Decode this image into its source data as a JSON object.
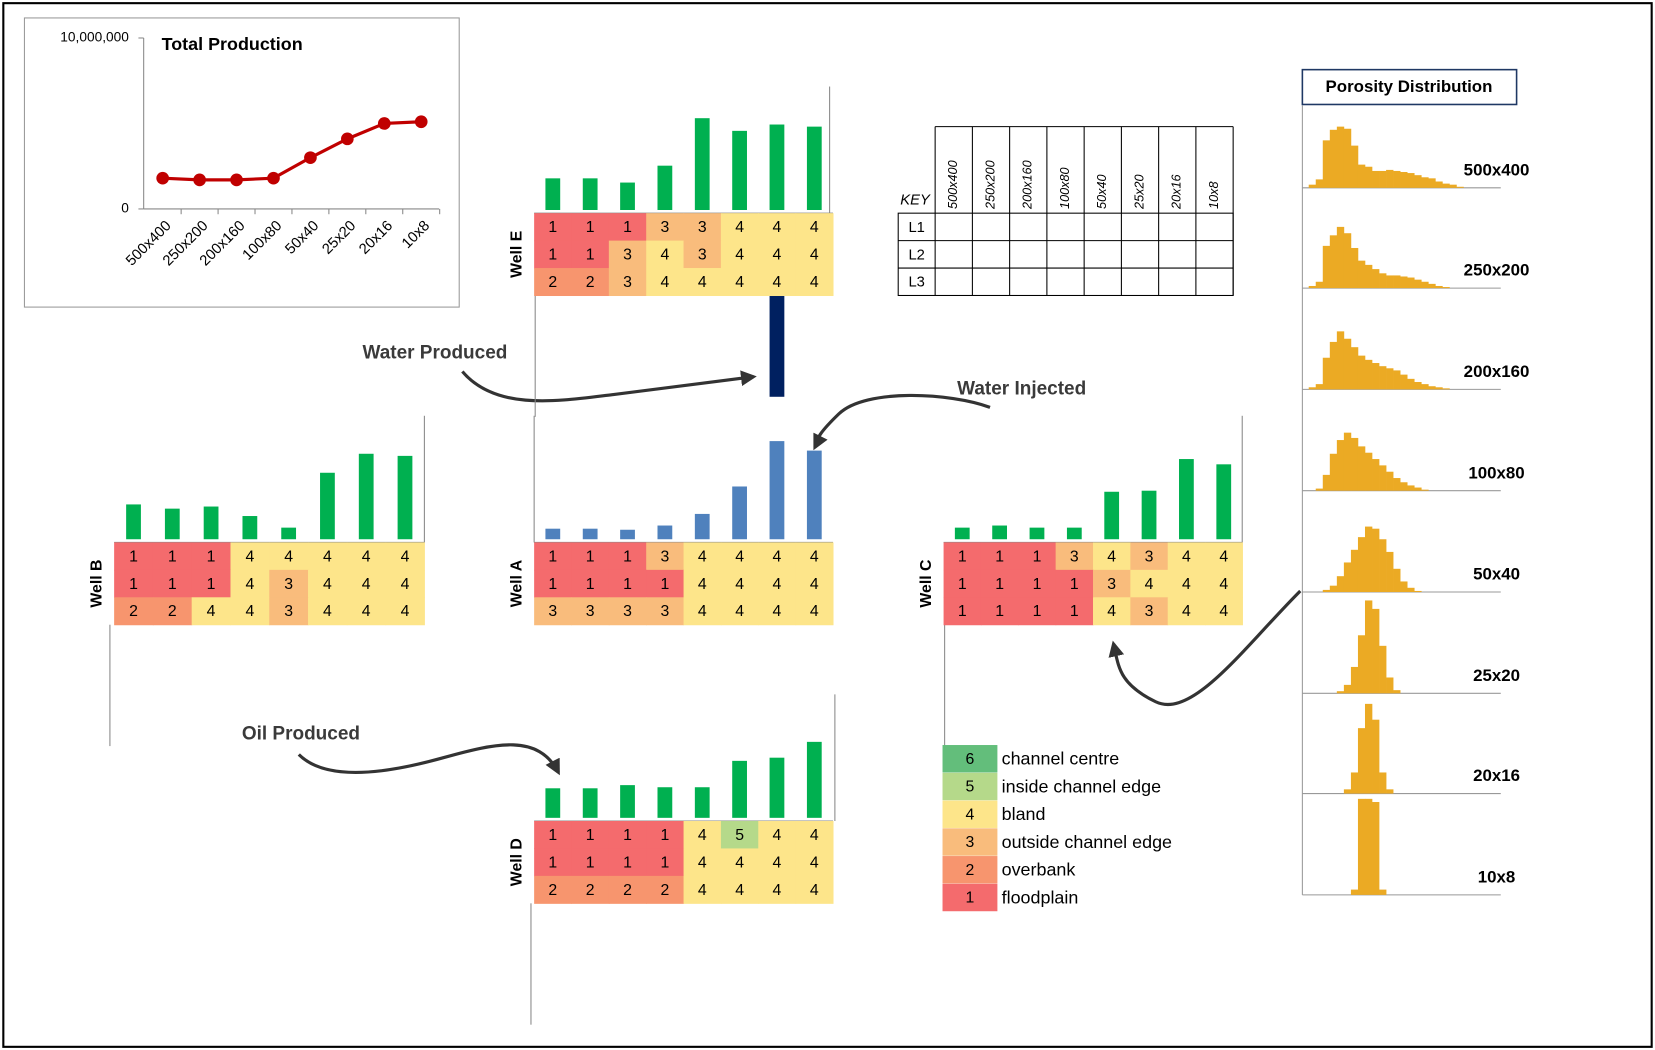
{
  "chart_data": [
    {
      "type": "line",
      "title": "Total Production",
      "categories": [
        "500x400",
        "250x200",
        "200x160",
        "100x80",
        "50x40",
        "25x20",
        "20x16",
        "10x8"
      ],
      "values": [
        1800000,
        1700000,
        1700000,
        1800000,
        3000000,
        4100000,
        5000000,
        5100000
      ],
      "color": "#c00000",
      "ylim": [
        0,
        10000000
      ],
      "yticks": [
        0,
        {
          "value": 10000000,
          "label": "10,000,000"
        }
      ]
    },
    {
      "type": "well",
      "title": "Well E",
      "values": [
        30,
        30,
        26,
        42,
        87,
        75,
        81,
        79
      ],
      "color": "#00b050",
      "water_values": [
        null,
        null,
        null,
        null,
        null,
        null,
        96,
        null
      ],
      "water_color": "#002060",
      "ylim": [
        0,
        120
      ],
      "codes": [
        [
          1,
          1,
          1,
          3,
          3,
          4,
          4,
          4
        ],
        [
          1,
          1,
          3,
          4,
          3,
          4,
          4,
          4
        ],
        [
          2,
          2,
          3,
          4,
          4,
          4,
          4,
          4
        ]
      ]
    },
    {
      "type": "well",
      "title": "Well B",
      "values": [
        33,
        29,
        31,
        22,
        11,
        63,
        81,
        79
      ],
      "color": "#00b050",
      "ylim": [
        0,
        120
      ],
      "codes": [
        [
          1,
          1,
          1,
          4,
          4,
          4,
          4,
          4
        ],
        [
          1,
          1,
          1,
          4,
          3,
          4,
          4,
          4
        ],
        [
          2,
          2,
          4,
          4,
          3,
          4,
          4,
          4
        ]
      ]
    },
    {
      "type": "well",
      "title": "Well A",
      "values": [
        10,
        10,
        9,
        13,
        24,
        50,
        93,
        84
      ],
      "color": "#4f81bd",
      "ylim": [
        0,
        120
      ],
      "codes": [
        [
          1,
          1,
          1,
          3,
          4,
          4,
          4,
          4
        ],
        [
          1,
          1,
          1,
          1,
          4,
          4,
          4,
          4
        ],
        [
          3,
          3,
          3,
          3,
          4,
          4,
          4,
          4
        ]
      ]
    },
    {
      "type": "well",
      "title": "Well C",
      "values": [
        11,
        13,
        11,
        11,
        45,
        46,
        76,
        71
      ],
      "color": "#00b050",
      "ylim": [
        0,
        120
      ],
      "codes": [
        [
          1,
          1,
          1,
          3,
          4,
          3,
          4,
          4
        ],
        [
          1,
          1,
          1,
          1,
          3,
          4,
          4,
          4
        ],
        [
          1,
          1,
          1,
          1,
          4,
          3,
          4,
          4
        ]
      ]
    },
    {
      "type": "well",
      "title": "Well D",
      "values": [
        28,
        28,
        31,
        29,
        29,
        54,
        57,
        72
      ],
      "color": "#00b050",
      "ylim": [
        0,
        120
      ],
      "codes": [
        [
          1,
          1,
          1,
          1,
          4,
          5,
          4,
          4
        ],
        [
          1,
          1,
          1,
          1,
          4,
          4,
          4,
          4
        ],
        [
          2,
          2,
          2,
          2,
          4,
          4,
          4,
          4
        ]
      ]
    },
    {
      "type": "histogram",
      "title": "500x400",
      "color": "#ebaa24",
      "xlim": [
        0,
        0.24
      ],
      "ylim": [
        0,
        100
      ],
      "bins": [
        0,
        0.01,
        0.02,
        0.03,
        0.04,
        0.05,
        0.06,
        0.07,
        0.08,
        0.09,
        0.1,
        0.11,
        0.12,
        0.13,
        0.14,
        0.15,
        0.16,
        0.17,
        0.18,
        0.19,
        0.2,
        0.21,
        0.22,
        0.23,
        0.24
      ],
      "values": [
        3,
        8,
        45,
        55,
        58,
        56,
        40,
        22,
        20,
        16,
        16,
        17,
        16,
        15,
        14,
        12,
        10,
        9,
        6,
        4,
        3,
        1,
        0,
        0
      ]
    },
    {
      "type": "histogram",
      "title": "250x200",
      "color": "#ebaa24",
      "xlim": [
        0,
        0.24
      ],
      "ylim": [
        0,
        100
      ],
      "bins": [
        0,
        0.01,
        0.02,
        0.03,
        0.04,
        0.05,
        0.06,
        0.07,
        0.08,
        0.09,
        0.1,
        0.11,
        0.12,
        0.13,
        0.14,
        0.15,
        0.16,
        0.17,
        0.18,
        0.19,
        0.2,
        0.21,
        0.22,
        0.23,
        0.24
      ],
      "values": [
        2,
        6,
        40,
        50,
        58,
        52,
        38,
        26,
        22,
        18,
        14,
        12,
        12,
        11,
        10,
        8,
        6,
        4,
        2,
        1,
        0,
        0,
        0,
        0
      ]
    },
    {
      "type": "histogram",
      "title": "200x160",
      "color": "#ebaa24",
      "xlim": [
        0,
        0.24
      ],
      "ylim": [
        0,
        100
      ],
      "bins": [
        0,
        0.01,
        0.02,
        0.03,
        0.04,
        0.05,
        0.06,
        0.07,
        0.08,
        0.09,
        0.1,
        0.11,
        0.12,
        0.13,
        0.14,
        0.15,
        0.16,
        0.17,
        0.18,
        0.19,
        0.2,
        0.21,
        0.22,
        0.23,
        0.24
      ],
      "values": [
        2,
        5,
        30,
        45,
        55,
        48,
        40,
        32,
        28,
        25,
        22,
        20,
        18,
        14,
        10,
        7,
        5,
        3,
        2,
        1,
        0,
        0,
        0,
        0
      ]
    },
    {
      "type": "histogram",
      "title": "100x80",
      "color": "#ebaa24",
      "xlim": [
        0,
        0.24
      ],
      "ylim": [
        0,
        100
      ],
      "bins": [
        0,
        0.01,
        0.02,
        0.03,
        0.04,
        0.05,
        0.06,
        0.07,
        0.08,
        0.09,
        0.1,
        0.11,
        0.12,
        0.13,
        0.14,
        0.15,
        0.16,
        0.17,
        0.18,
        0.19,
        0.2,
        0.21,
        0.22,
        0.23,
        0.24
      ],
      "values": [
        0,
        2,
        15,
        35,
        48,
        55,
        50,
        42,
        36,
        30,
        24,
        18,
        12,
        8,
        5,
        3,
        1,
        0,
        0,
        0,
        0,
        0,
        0,
        0
      ]
    },
    {
      "type": "histogram",
      "title": "50x40",
      "color": "#ebaa24",
      "xlim": [
        0,
        0.24
      ],
      "ylim": [
        0,
        100
      ],
      "bins": [
        0,
        0.01,
        0.02,
        0.03,
        0.04,
        0.05,
        0.06,
        0.07,
        0.08,
        0.09,
        0.1,
        0.11,
        0.12,
        0.13,
        0.14,
        0.15,
        0.16,
        0.17,
        0.18,
        0.19,
        0.2,
        0.21,
        0.22,
        0.23,
        0.24
      ],
      "values": [
        0,
        0,
        2,
        6,
        15,
        28,
        40,
        52,
        62,
        60,
        50,
        38,
        22,
        10,
        4,
        1,
        0,
        0,
        0,
        0,
        0,
        0,
        0,
        0
      ]
    },
    {
      "type": "histogram",
      "title": "25x20",
      "color": "#ebaa24",
      "xlim": [
        0,
        0.24
      ],
      "ylim": [
        0,
        100
      ],
      "bins": [
        0,
        0.01,
        0.02,
        0.03,
        0.04,
        0.05,
        0.06,
        0.07,
        0.08,
        0.09,
        0.1,
        0.11,
        0.12,
        0.13,
        0.14,
        0.15,
        0.16,
        0.17,
        0.18,
        0.19,
        0.2,
        0.21,
        0.22,
        0.23,
        0.24
      ],
      "values": [
        0,
        0,
        0,
        0,
        2,
        8,
        25,
        55,
        88,
        80,
        45,
        15,
        3,
        0,
        0,
        0,
        0,
        0,
        0,
        0,
        0,
        0,
        0,
        0
      ]
    },
    {
      "type": "histogram",
      "title": "20x16",
      "color": "#ebaa24",
      "xlim": [
        0,
        0.24
      ],
      "ylim": [
        0,
        100
      ],
      "bins": [
        0,
        0.01,
        0.02,
        0.03,
        0.04,
        0.05,
        0.06,
        0.07,
        0.08,
        0.09,
        0.1,
        0.11,
        0.12,
        0.13,
        0.14,
        0.15,
        0.16,
        0.17,
        0.18,
        0.19,
        0.2,
        0.21,
        0.22,
        0.23,
        0.24
      ],
      "values": [
        0,
        0,
        0,
        0,
        0,
        4,
        20,
        62,
        85,
        70,
        20,
        4,
        0,
        0,
        0,
        0,
        0,
        0,
        0,
        0,
        0,
        0,
        0,
        0
      ]
    },
    {
      "type": "histogram",
      "title": "10x8",
      "color": "#ebaa24",
      "xlim": [
        0,
        0.24
      ],
      "ylim": [
        0,
        100
      ],
      "bins": [
        0,
        0.01,
        0.02,
        0.03,
        0.04,
        0.05,
        0.06,
        0.07,
        0.08,
        0.09,
        0.1,
        0.11,
        0.12,
        0.13,
        0.14,
        0.15,
        0.16,
        0.17,
        0.18,
        0.19,
        0.2,
        0.21,
        0.22,
        0.23,
        0.24
      ],
      "values": [
        0,
        0,
        0,
        0,
        0,
        0,
        5,
        91,
        91,
        88,
        5,
        0,
        0,
        0,
        0,
        0,
        0,
        0,
        0,
        0,
        0,
        0,
        0,
        0
      ]
    }
  ],
  "key_table": {
    "corner": "KEY",
    "columns": [
      "500x400",
      "250x200",
      "200x160",
      "100x80",
      "50x40",
      "25x20",
      "20x16",
      "10x8"
    ],
    "rows": [
      "L1",
      "L2",
      "L3"
    ]
  },
  "legend": [
    {
      "code": 6,
      "label": "channel centre",
      "color": "#63be7b"
    },
    {
      "code": 5,
      "label": "inside channel edge",
      "color": "#b5d98a"
    },
    {
      "code": 4,
      "label": "bland",
      "color": "#fde58a"
    },
    {
      "code": 3,
      "label": "outside channel edge",
      "color": "#f9bc7c"
    },
    {
      "code": 2,
      "label": "overbank",
      "color": "#f7956e"
    },
    {
      "code": 1,
      "label": "floodplain",
      "color": "#f46b6d"
    }
  ],
  "annotations": [
    "Water Produced",
    "Water Injected",
    "Oil Produced"
  ],
  "porosity_title": "Porosity Distribution"
}
